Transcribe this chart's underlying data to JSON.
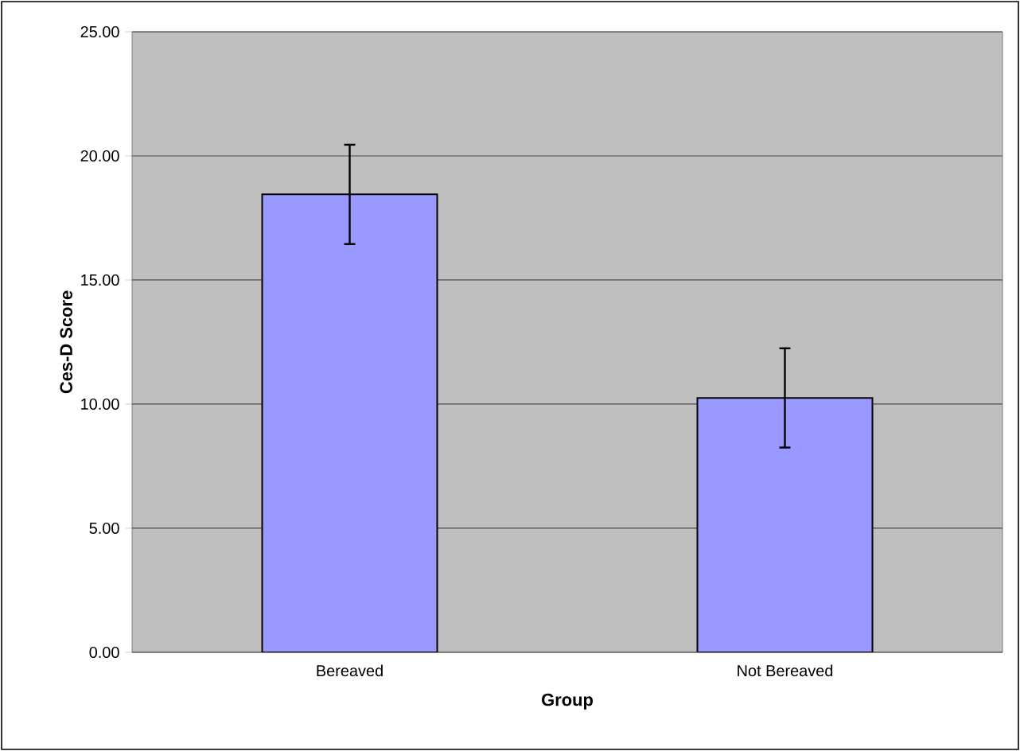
{
  "chart_data": {
    "type": "bar",
    "xlabel": "Group",
    "ylabel": "Ces-D Score",
    "categories": [
      "Bereaved",
      "Not Bereaved"
    ],
    "values": [
      18.45,
      10.25
    ],
    "errors": [
      2.0,
      2.0
    ],
    "color": "#9999ff",
    "ylim": [
      0,
      25
    ],
    "yticks": [
      {
        "value": 0,
        "label": "0.00"
      },
      {
        "value": 5,
        "label": "5.00"
      },
      {
        "value": 10,
        "label": "10.00"
      },
      {
        "value": 15,
        "label": "15.00"
      },
      {
        "value": 20,
        "label": "20.00"
      },
      {
        "value": 25,
        "label": "25.00"
      }
    ],
    "grid": "y"
  }
}
